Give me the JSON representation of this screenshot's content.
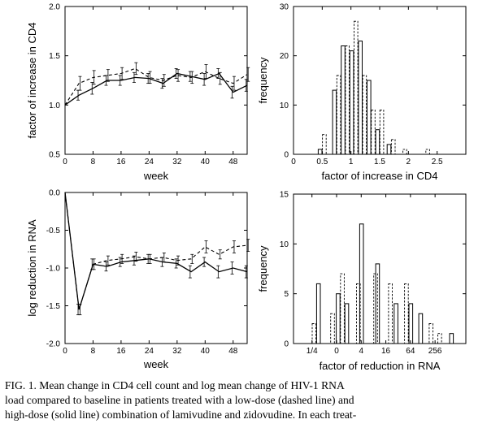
{
  "caption": {
    "line1": "FIG. 1. Mean change in CD4 cell count and log mean change of HIV-1 RNA",
    "line2": "load compared to baseline in patients treated with a low-dose (dashed line) and",
    "line3": "high-dose (solid line) combination of lamivudine and zidovudine. In each treat-"
  },
  "chart_data": [
    {
      "id": "cd4_time",
      "type": "line",
      "xlabel": "week",
      "ylabel": "factor of increase in CD4",
      "xlim": [
        0,
        52
      ],
      "ylim": [
        0.5,
        2.0
      ],
      "x_ticks": [
        0,
        8,
        16,
        24,
        32,
        40,
        48
      ],
      "y_ticks": [
        0.5,
        1.0,
        1.5,
        2.0
      ],
      "y_tick_labels": [
        "0.5",
        "1.0",
        "1.5",
        "2.0"
      ],
      "series": [
        {
          "style": "dashed",
          "x": [
            0,
            4,
            8,
            12,
            16,
            20,
            24,
            28,
            32,
            36,
            40,
            44,
            48,
            52
          ],
          "y": [
            1.0,
            1.22,
            1.28,
            1.3,
            1.32,
            1.37,
            1.28,
            1.25,
            1.3,
            1.28,
            1.34,
            1.27,
            1.22,
            1.31
          ],
          "err": [
            0,
            0.07,
            0.07,
            0.06,
            0.06,
            0.06,
            0.06,
            0.06,
            0.06,
            0.06,
            0.07,
            0.06,
            0.07,
            0.07
          ]
        },
        {
          "style": "solid",
          "x": [
            0,
            4,
            8,
            12,
            16,
            20,
            24,
            28,
            32,
            36,
            40,
            44,
            48,
            52
          ],
          "y": [
            1.0,
            1.1,
            1.17,
            1.25,
            1.25,
            1.28,
            1.27,
            1.22,
            1.32,
            1.29,
            1.26,
            1.32,
            1.13,
            1.2
          ],
          "err": [
            0,
            0.05,
            0.06,
            0.05,
            0.05,
            0.05,
            0.05,
            0.05,
            0.05,
            0.05,
            0.06,
            0.05,
            0.06,
            0.06
          ]
        }
      ]
    },
    {
      "id": "cd4_hist",
      "type": "bar",
      "xlabel": "factor of increase in CD4",
      "ylabel": "frequency",
      "xlim": [
        0,
        3
      ],
      "ylim": [
        0,
        30
      ],
      "x_ticks": [
        0,
        0.5,
        1,
        1.5,
        2,
        2.5
      ],
      "x_tick_labels": [
        "0",
        "0.5",
        "1",
        "1.5",
        "2",
        "2.5"
      ],
      "y_ticks": [
        0,
        10,
        20,
        30
      ],
      "y_tick_labels": [
        "0",
        "10",
        "20",
        "30"
      ],
      "bin_centers": [
        0.5,
        0.75,
        0.9,
        1.05,
        1.2,
        1.35,
        1.5,
        1.7,
        1.9,
        2.3
      ],
      "series": [
        {
          "style": "solid",
          "values": [
            1,
            13,
            22,
            21,
            23,
            15,
            5,
            2,
            0,
            0
          ]
        },
        {
          "style": "dashed",
          "values": [
            4,
            16,
            22,
            27,
            16,
            9,
            9,
            3,
            1,
            1
          ]
        }
      ]
    },
    {
      "id": "rna_time",
      "type": "line",
      "xlabel": "week",
      "ylabel": "log reduction in RNA",
      "xlim": [
        0,
        52
      ],
      "ylim": [
        -2.0,
        0.0
      ],
      "x_ticks": [
        0,
        8,
        16,
        24,
        32,
        40,
        48
      ],
      "y_ticks": [
        -2.0,
        -1.5,
        -1.0,
        -0.5,
        0.0
      ],
      "y_tick_labels": [
        "-2.0",
        "-1.5",
        "-1.0",
        "-0.5",
        "0.0"
      ],
      "series": [
        {
          "style": "dashed",
          "x": [
            0,
            4,
            8,
            12,
            16,
            20,
            24,
            28,
            32,
            36,
            40,
            44,
            48,
            52
          ],
          "y": [
            0,
            -1.55,
            -0.95,
            -0.9,
            -0.88,
            -0.85,
            -0.88,
            -0.86,
            -0.9,
            -0.88,
            -0.72,
            -0.82,
            -0.72,
            -0.7
          ],
          "err": [
            0,
            0.07,
            0.07,
            0.06,
            0.06,
            0.06,
            0.06,
            0.06,
            0.06,
            0.06,
            0.08,
            0.06,
            0.08,
            0.08
          ]
        },
        {
          "style": "solid",
          "x": [
            0,
            4,
            8,
            12,
            16,
            20,
            24,
            28,
            32,
            36,
            40,
            44,
            48,
            52
          ],
          "y": [
            0,
            -1.55,
            -0.95,
            -0.98,
            -0.92,
            -0.9,
            -0.88,
            -0.92,
            -0.94,
            -1.05,
            -0.92,
            -1.05,
            -1.0,
            -1.05
          ],
          "err": [
            0,
            0.07,
            0.07,
            0.06,
            0.06,
            0.06,
            0.06,
            0.06,
            0.06,
            0.08,
            0.06,
            0.08,
            0.08,
            0.08
          ]
        }
      ]
    },
    {
      "id": "rna_hist",
      "type": "bar",
      "xlabel": "factor of reduction in RNA",
      "ylabel": "frequency",
      "xlim": [
        -3.5,
        10.5
      ],
      "ylim": [
        0,
        15
      ],
      "x_ticks": [
        -2,
        0,
        2,
        4,
        6,
        8
      ],
      "x_tick_labels": [
        "1/4",
        "0",
        "4",
        "16",
        "64",
        "256"
      ],
      "y_ticks": [
        0,
        5,
        10,
        15
      ],
      "y_tick_labels": [
        "0",
        "5",
        "10",
        "15"
      ],
      "bin_centers": [
        -2,
        -1.3,
        -0.5,
        0.3,
        1.0,
        1.6,
        2.2,
        3,
        3.5,
        4.2,
        5,
        5.5,
        6.2,
        7,
        7.5,
        8.2,
        9.5
      ],
      "series": [
        {
          "style": "solid",
          "values": [
            0,
            6,
            0,
            5,
            4,
            0,
            12,
            0,
            8,
            0,
            4,
            0,
            4,
            3,
            0,
            0,
            1
          ]
        },
        {
          "style": "dashed",
          "values": [
            2,
            0,
            3,
            7,
            0,
            6,
            0,
            7,
            0,
            6,
            0,
            6,
            0,
            0,
            2,
            1,
            0
          ]
        }
      ]
    }
  ]
}
